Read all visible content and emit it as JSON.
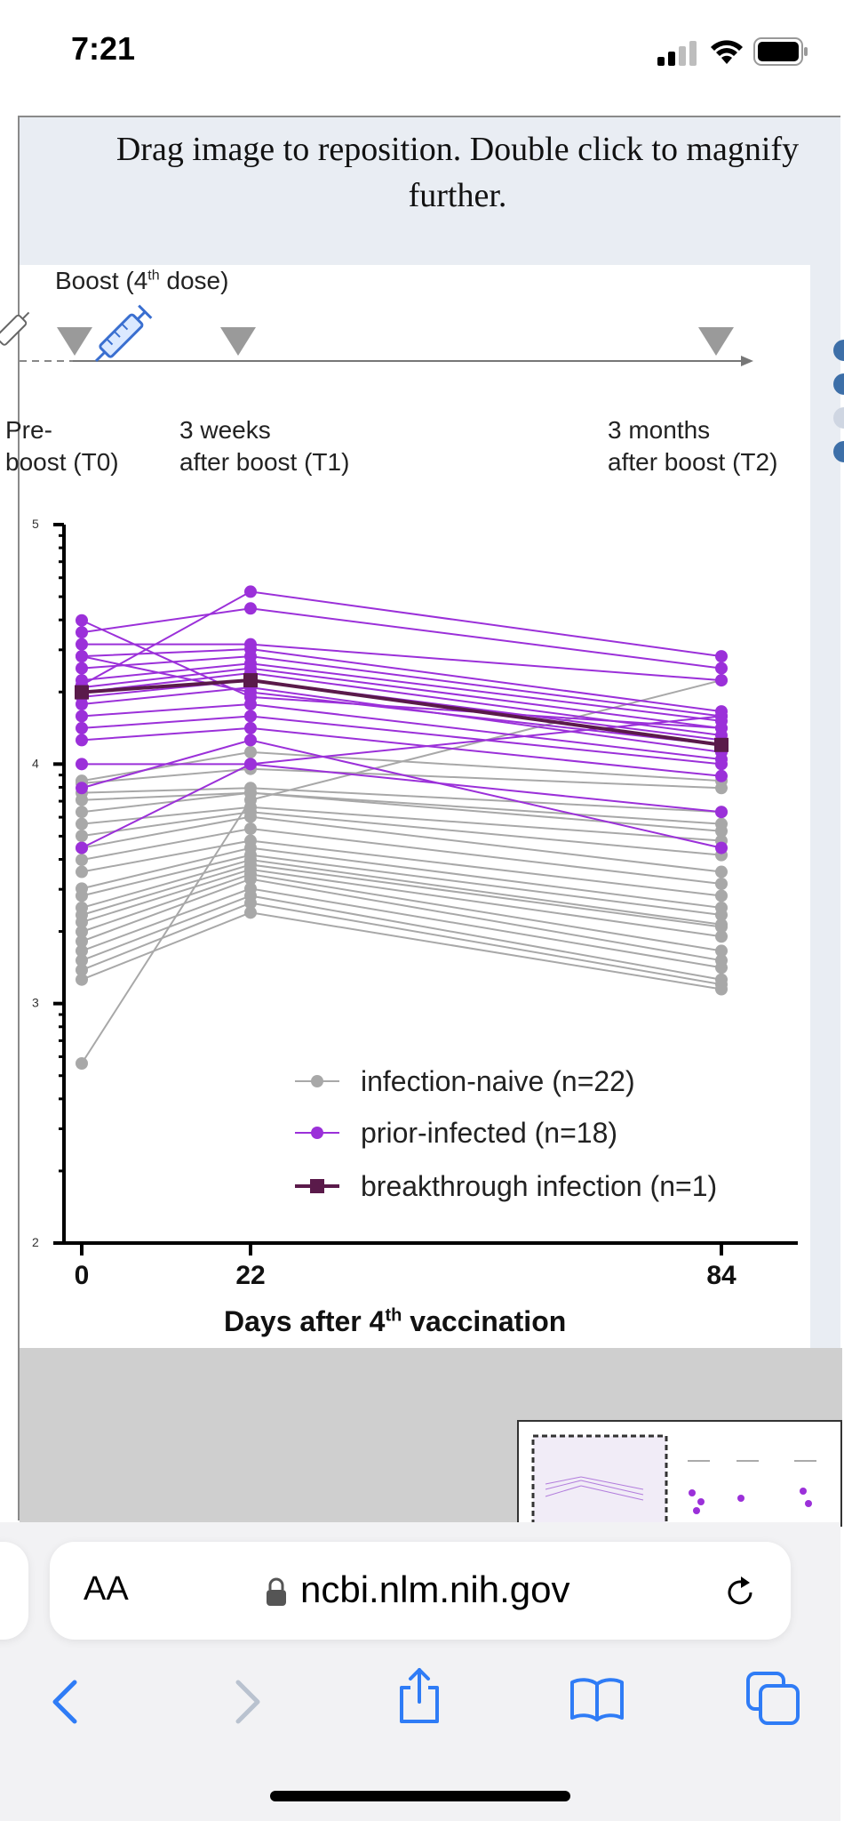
{
  "status_bar": {
    "time": "7:21"
  },
  "viewer": {
    "instructions": "Drag image to reposition. Double click to magnify further."
  },
  "figure_header": {
    "boost_label_main": "Boost (4",
    "boost_label_sup": "th",
    "boost_label_end": " dose)",
    "timepoints": [
      {
        "line1": "Pre-",
        "line2": "boost (T0)"
      },
      {
        "line1": "3 weeks",
        "line2": "after boost (T1)"
      },
      {
        "line1": "3 months",
        "line2": "after boost (T2)"
      }
    ]
  },
  "chart_data": {
    "type": "line",
    "x": [
      0,
      22,
      84
    ],
    "x_tick_labels": [
      "0",
      "22",
      "84"
    ],
    "xlabel_main": "Days after 4",
    "xlabel_sup": "th",
    "xlabel_end": " vaccination",
    "y_tick_labels": [
      "5",
      "4",
      "3",
      "2"
    ],
    "ylim": [
      2,
      5
    ],
    "legend": [
      {
        "label": "infection-naive (n=22)",
        "color": "#a8a8a8"
      },
      {
        "label": "prior-infected (n=18)",
        "color": "#9b30d9"
      },
      {
        "label": "breakthrough infection (n=1)",
        "color": "#5a1a4a"
      }
    ],
    "legend_position": "bottom-right",
    "series_groups": [
      {
        "group": "infection-naive",
        "color": "#a8a8a8",
        "lines": [
          [
            3.93,
            4.05,
            3.93
          ],
          [
            3.92,
            3.98,
            3.9
          ],
          [
            3.88,
            3.9,
            3.8
          ],
          [
            3.85,
            3.88,
            3.75
          ],
          [
            3.8,
            3.88,
            3.72
          ],
          [
            3.75,
            3.82,
            3.68
          ],
          [
            3.7,
            3.8,
            3.62
          ],
          [
            3.65,
            3.78,
            3.55
          ],
          [
            3.6,
            3.73,
            3.5
          ],
          [
            3.55,
            3.68,
            3.45
          ],
          [
            3.48,
            3.65,
            3.4
          ],
          [
            3.45,
            3.62,
            3.37
          ],
          [
            3.4,
            3.6,
            3.33
          ],
          [
            3.37,
            3.58,
            3.32
          ],
          [
            3.34,
            3.56,
            3.28
          ],
          [
            3.3,
            3.54,
            3.22
          ],
          [
            3.26,
            3.52,
            3.18
          ],
          [
            3.22,
            3.48,
            3.15
          ],
          [
            3.18,
            3.45,
            3.1
          ],
          [
            3.14,
            3.42,
            3.08
          ],
          [
            3.1,
            3.38,
            3.06
          ],
          [
            2.75,
            3.85,
            4.35
          ]
        ]
      },
      {
        "group": "prior-infected",
        "color": "#9b30d9",
        "lines": [
          [
            4.33,
            4.72,
            4.45
          ],
          [
            4.55,
            4.65,
            4.4
          ],
          [
            4.5,
            4.5,
            4.35
          ],
          [
            4.45,
            4.48,
            4.22
          ],
          [
            4.4,
            4.45,
            4.2
          ],
          [
            4.35,
            4.42,
            4.18
          ],
          [
            4.32,
            4.4,
            4.15
          ],
          [
            4.3,
            4.38,
            4.12
          ],
          [
            4.28,
            4.35,
            4.1
          ],
          [
            4.25,
            4.32,
            4.05
          ],
          [
            4.2,
            4.25,
            4.02
          ],
          [
            4.15,
            4.2,
            4.0
          ],
          [
            4.1,
            4.15,
            3.95
          ],
          [
            4.0,
            4.0,
            3.8
          ],
          [
            3.9,
            4.1,
            3.65
          ],
          [
            3.65,
            4.0,
            4.2
          ],
          [
            4.45,
            4.3,
            4.08
          ],
          [
            4.6,
            4.28,
            4.15
          ]
        ]
      },
      {
        "group": "breakthrough infection",
        "color": "#5a1a4a",
        "lines": [
          [
            4.3,
            4.35,
            4.08
          ]
        ]
      }
    ]
  },
  "browser": {
    "text_size_label": "AA",
    "url": "ncbi.nlm.nih.gov"
  },
  "toolbar": {
    "back": "back-icon",
    "forward": "forward-icon",
    "share": "share-icon",
    "bookmarks": "book-icon",
    "tabs": "tabs-icon"
  }
}
